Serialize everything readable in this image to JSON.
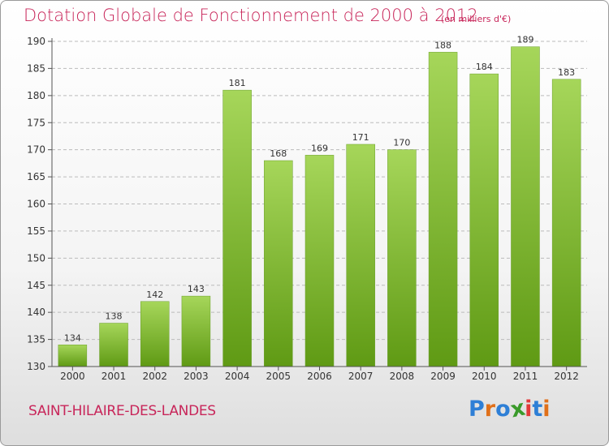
{
  "header": {
    "title": "Dotation Globale de Fonctionnement de 2000 à 2012",
    "unit": "(en milliers d'€)"
  },
  "footer": {
    "commune": "SAINT-HILAIRE-DES-LANDES",
    "logo": [
      "P",
      "r",
      "o",
      "x",
      "i",
      "t",
      "i"
    ]
  },
  "colors": {
    "title": "#c8265a",
    "bar_light": "#a6d65a",
    "bar_dark": "#5f9a14",
    "axis": "#555555",
    "grid": "#bbbbbb",
    "logo": [
      "#2e7fd6",
      "#e0701a",
      "#2e7fd6",
      "#3a9a2a",
      "#e23a3a",
      "#2e7fd6",
      "#e0701a"
    ]
  },
  "chart_data": {
    "type": "bar",
    "title": "Dotation Globale de Fonctionnement de 2000 à 2012",
    "xlabel": "",
    "ylabel": "",
    "categories": [
      "2000",
      "2001",
      "2002",
      "2003",
      "2004",
      "2005",
      "2006",
      "2007",
      "2008",
      "2009",
      "2010",
      "2011",
      "2012"
    ],
    "values": [
      134,
      138,
      142,
      143,
      181,
      168,
      169,
      171,
      170,
      188,
      184,
      189,
      183
    ],
    "ylim": [
      130,
      190
    ],
    "yticks": [
      130,
      135,
      140,
      145,
      150,
      155,
      160,
      165,
      170,
      175,
      180,
      185,
      190
    ],
    "grid": "horizontal dashed",
    "legend": "none"
  }
}
